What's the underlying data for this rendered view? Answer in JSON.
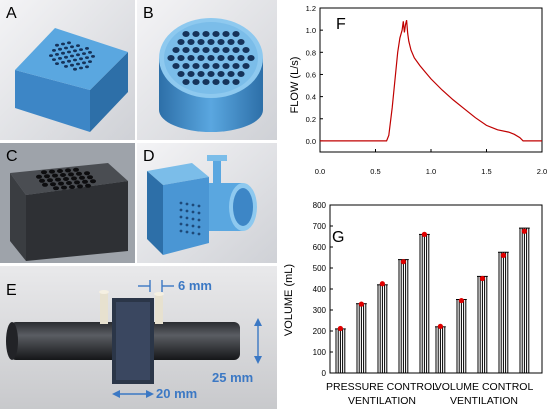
{
  "panels": {
    "a": {
      "label": "A"
    },
    "b": {
      "label": "B"
    },
    "c": {
      "label": "C"
    },
    "d": {
      "label": "D"
    },
    "e": {
      "label": "E",
      "dimensions": [
        "6 mm",
        "25 mm",
        "20 mm"
      ]
    },
    "f": {
      "label": "F"
    },
    "g": {
      "label": "G"
    }
  },
  "colors": {
    "cad_blue": "#5aa7e0",
    "flow_trace": "#c00000",
    "marker_red": "#e00000",
    "dimension_blue": "#3b78c4"
  },
  "chart_data": [
    {
      "id": "F",
      "type": "line",
      "title": "",
      "xlabel": "",
      "ylabel": "FLOW (L/s)",
      "xlim": [
        0.0,
        2.0
      ],
      "ylim": [
        -0.1,
        1.2
      ],
      "xticks": [
        "0.0",
        "0.5",
        "1.0",
        "1.5",
        "2.0"
      ],
      "yticks": [
        "0.0",
        "0.2",
        "0.4",
        "0.6",
        "0.8",
        "1.0",
        "1.2"
      ],
      "series": [
        {
          "x": [
            0.0,
            0.6,
            0.62,
            0.65,
            0.68,
            0.7,
            0.72,
            0.74,
            0.75,
            0.76,
            0.77,
            0.78,
            0.79,
            0.8,
            0.82,
            0.85,
            0.9,
            0.95,
            1.0,
            1.1,
            1.2,
            1.3,
            1.4,
            1.5,
            1.6,
            1.7,
            1.75,
            1.8,
            1.83,
            1.86,
            1.9,
            2.0
          ],
          "y": [
            0.0,
            0.0,
            0.05,
            0.3,
            0.6,
            0.8,
            0.93,
            1.0,
            1.08,
            0.98,
            1.05,
            1.09,
            0.97,
            0.9,
            0.82,
            0.75,
            0.68,
            0.62,
            0.56,
            0.46,
            0.37,
            0.29,
            0.21,
            0.14,
            0.1,
            0.08,
            0.06,
            0.03,
            0.0,
            0.0,
            0.0,
            0.0
          ]
        }
      ]
    },
    {
      "id": "G",
      "type": "bar",
      "title": "",
      "ylabel": "VOLUME (mL)",
      "ylim": [
        0,
        800
      ],
      "yticks": [
        "0",
        "100",
        "200",
        "300",
        "400",
        "500",
        "600",
        "700",
        "800"
      ],
      "group_labels": [
        [
          "PRESSURE CONTROL",
          "VENTILATION"
        ],
        [
          "VOLUME CONTROL",
          "VENTILATION"
        ]
      ],
      "groups": [
        {
          "bars": [
            210,
            330,
            420,
            540,
            660
          ],
          "markers": [
            212,
            328,
            425,
            530,
            660
          ]
        },
        {
          "bars": [
            220,
            350,
            460,
            575,
            690
          ],
          "markers": [
            222,
            345,
            450,
            560,
            675
          ]
        }
      ],
      "lines_per_bar": 5
    }
  ]
}
